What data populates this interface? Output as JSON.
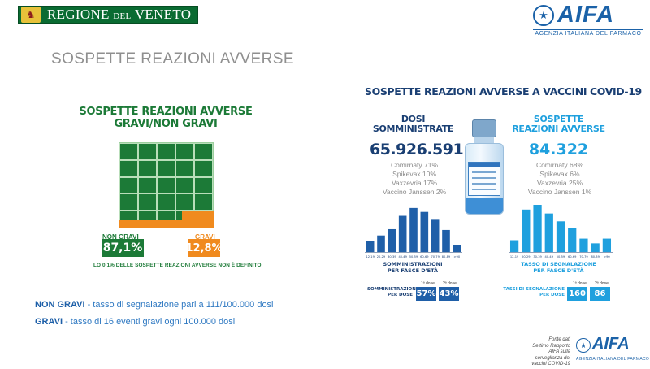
{
  "header": {
    "region_name": "REGIONE",
    "region_joiner": "DEL",
    "region_place": "VENETO",
    "agency_acronym": "AIFA",
    "agency_name": "AGENZIA ITALIANA DEL FARMACO"
  },
  "page_title": "SOSPETTE REAZIONI AVVERSE",
  "left_chart": {
    "title_line1": "SOSPETTE REAZIONI AVVERSE",
    "title_line2": "GRAVI/NON GRAVI",
    "non_gravi_label": "NON GRAVI",
    "non_gravi_value": "87,1%",
    "gravi_label": "GRAVI",
    "gravi_value": "12,8%",
    "note": "LO 0,1% DELLE SOSPETTE REAZIONI AVVERSE NON È DEFINITO"
  },
  "rates": {
    "non_gravi_label": "NON GRAVI",
    "non_gravi_text": "  - tasso di segnalazione pari a 111/100.000 dosi",
    "gravi_label": "GRAVI",
    "gravi_text": " - tasso di 16 eventi gravi ogni 100.000 dosi"
  },
  "infographic": {
    "title": "SOSPETTE REAZIONI AVVERSE A VACCINI COVID-19",
    "dosi": {
      "header_line1": "DOSI",
      "header_line2": "SOMMINISTRATE",
      "total": "65.926.591",
      "vaccines": [
        "Comirnaty 71%",
        "Spikevax 10%",
        "Vaxzevria 17%",
        "Vaccino Janssen 2%"
      ],
      "chart_caption_line1": "SOMMINISTRAZIONI",
      "chart_caption_line2": "PER FASCE D'ETÀ",
      "per_dose_label_line1": "SOMMINISTRAZIONI",
      "per_dose_label_line2": "PER DOSE",
      "dose1_head": "1ª dose",
      "dose2_head": "2ª dose",
      "dose1_value": "57%",
      "dose2_value": "43%"
    },
    "reazioni": {
      "header_line1": "SOSPETTE",
      "header_line2": "REAZIONI AVVERSE",
      "total": "84.322",
      "vaccines": [
        "Comirnaty 68%",
        "Spikevax 6%",
        "Vaxzevria 25%",
        "Vaccino Janssen 1%"
      ],
      "chart_caption_line1": "TASSO DI SEGNALAZIONE",
      "chart_caption_line2": "PER FASCE D'ETÀ",
      "per_dose_label_line1": "TASSI DI SEGNALAZIONE",
      "per_dose_label_line2": "PER DOSE",
      "dose1_head": "1ª dose",
      "dose2_head": "2ª dose",
      "dose1_value": "160",
      "dose2_value": "86"
    }
  },
  "source": {
    "line1": "Fonte dati",
    "line2": "Settimo Rapporto AIFA sulla",
    "line3": "sorveglianza dei vaccini COVID-19"
  },
  "colors": {
    "green": "#1c7a37",
    "orange": "#f08a1e",
    "dark_blue": "#1f5fa8",
    "light_blue": "#1fa0de"
  },
  "chart_data": [
    {
      "type": "bar",
      "categories": [
        "12-19",
        "20-29",
        "30-39",
        "40-49",
        "50-59",
        "60-69",
        "70-79",
        "80-89",
        ">90"
      ],
      "values": [
        14,
        21,
        29,
        46,
        56,
        51,
        41,
        28,
        9
      ],
      "title": "",
      "xlabel": "SOMMINISTRAZIONI PER FASCE D'ETÀ",
      "ylabel": "",
      "color": "#1f5fa8"
    },
    {
      "type": "bar",
      "categories": [
        "12-19",
        "20-29",
        "30-39",
        "40-49",
        "50-59",
        "60-69",
        "70-79",
        "80-89",
        ">90"
      ],
      "values": [
        15,
        54,
        60,
        49,
        39,
        30,
        17,
        11,
        17
      ],
      "title": "",
      "xlabel": "TASSO DI SEGNALAZIONE PER FASCE D'ETÀ",
      "ylabel": "",
      "color": "#1fa0de"
    }
  ]
}
